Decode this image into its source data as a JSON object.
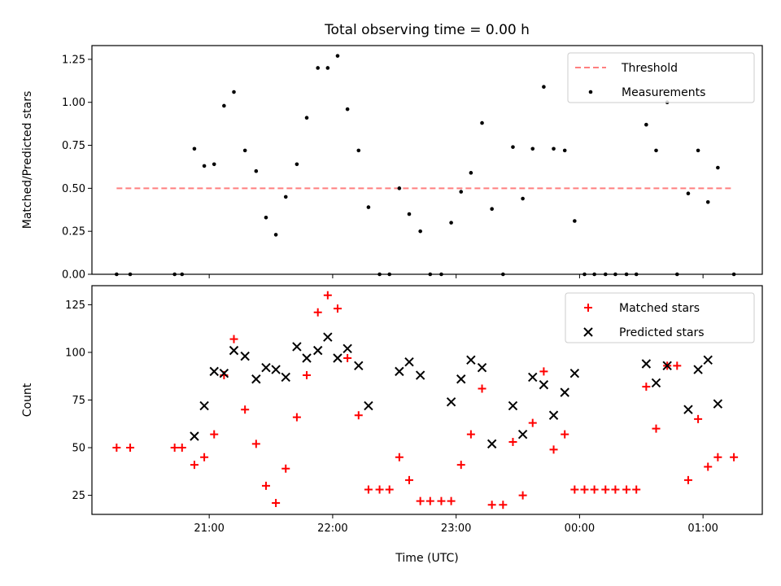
{
  "chart_data": {
    "type": "scatter",
    "title": "Total observing time = 0.00 h",
    "xlabel": "Time (UTC)",
    "x_ticks": [
      "21:00",
      "22:00",
      "23:00",
      "00:00",
      "01:00"
    ],
    "x_tick_hours": [
      21,
      22,
      23,
      24,
      25
    ],
    "xlim_hours": [
      20.05,
      25.48
    ],
    "panels": [
      {
        "ylabel": "Matched/Predicted stars",
        "ylim": [
          0,
          1.33
        ],
        "yticks": [
          "0.00",
          "0.25",
          "0.50",
          "0.75",
          "1.00",
          "1.25"
        ],
        "ytick_values": [
          0,
          0.25,
          0.5,
          0.75,
          1.0,
          1.25
        ],
        "legend_position": "top-right",
        "series": [
          {
            "name": "Threshold",
            "kind": "line",
            "style": "dashed",
            "color": "#ff7f7f",
            "y": 0.5,
            "x_range_hours": [
              20.25,
              25.25
            ]
          },
          {
            "name": "Measurements",
            "kind": "scatter",
            "marker": "dot",
            "color": "#000000",
            "x_hours": [
              20.25,
              20.36,
              20.72,
              20.78,
              20.88,
              20.96,
              21.04,
              21.12,
              21.2,
              21.29,
              21.38,
              21.46,
              21.54,
              21.62,
              21.71,
              21.79,
              21.88,
              21.96,
              22.04,
              22.12,
              22.21,
              22.29,
              22.38,
              22.46,
              22.54,
              22.62,
              22.71,
              22.79,
              22.88,
              22.96,
              23.04,
              23.12,
              23.21,
              23.29,
              23.38,
              23.46,
              23.54,
              23.62,
              23.71,
              23.79,
              23.88,
              23.96,
              24.04,
              24.12,
              24.21,
              24.29,
              24.38,
              24.46,
              24.54,
              24.62,
              24.71,
              24.79,
              24.88,
              24.96,
              25.04,
              25.12,
              25.25
            ],
            "y": [
              0,
              0,
              0,
              0,
              0.73,
              0.63,
              0.64,
              0.98,
              1.06,
              0.72,
              0.6,
              0.33,
              0.23,
              0.45,
              0.64,
              0.91,
              1.2,
              1.2,
              1.27,
              0.96,
              0.72,
              0.39,
              0,
              0,
              0.5,
              0.35,
              0.25,
              0,
              0,
              0.3,
              0.48,
              0.59,
              0.88,
              0.38,
              0,
              0.74,
              0.44,
              0.73,
              1.09,
              0.73,
              0.72,
              0.31,
              0,
              0,
              0,
              0,
              0,
              0,
              0.87,
              0.72,
              1.0,
              0,
              0.47,
              0.72,
              0.42,
              0.62,
              0
            ]
          }
        ]
      },
      {
        "ylabel": "Count",
        "ylim": [
          15,
          135
        ],
        "yticks": [
          "25",
          "50",
          "75",
          "100",
          "125"
        ],
        "ytick_values": [
          25,
          50,
          75,
          100,
          125
        ],
        "legend_position": "top-right",
        "series": [
          {
            "name": "Matched stars",
            "kind": "scatter",
            "marker": "plus",
            "color": "#ff0000",
            "x_hours": [
              20.25,
              20.36,
              20.72,
              20.78,
              20.88,
              20.96,
              21.04,
              21.12,
              21.2,
              21.29,
              21.38,
              21.46,
              21.54,
              21.62,
              21.71,
              21.79,
              21.88,
              21.96,
              22.04,
              22.12,
              22.21,
              22.29,
              22.38,
              22.46,
              22.54,
              22.62,
              22.71,
              22.79,
              22.88,
              22.96,
              23.04,
              23.12,
              23.21,
              23.29,
              23.38,
              23.46,
              23.54,
              23.62,
              23.71,
              23.79,
              23.88,
              23.96,
              24.04,
              24.12,
              24.21,
              24.29,
              24.38,
              24.46,
              24.54,
              24.62,
              24.71,
              24.79,
              24.88,
              24.96,
              25.04,
              25.12,
              25.25
            ],
            "y": [
              50,
              50,
              50,
              50,
              41,
              45,
              57,
              88,
              107,
              70,
              52,
              30,
              21,
              39,
              66,
              88,
              121,
              130,
              123,
              97,
              67,
              28,
              28,
              28,
              45,
              33,
              22,
              22,
              22,
              22,
              41,
              57,
              81,
              20,
              20,
              53,
              25,
              63,
              90,
              49,
              57,
              28,
              28,
              28,
              28,
              28,
              28,
              28,
              82,
              60,
              93,
              93,
              33,
              65,
              40,
              45,
              45
            ]
          },
          {
            "name": "Predicted stars",
            "kind": "scatter",
            "marker": "x",
            "color": "#000000",
            "x_hours": [
              20.88,
              20.96,
              21.04,
              21.12,
              21.2,
              21.29,
              21.38,
              21.46,
              21.54,
              21.62,
              21.71,
              21.79,
              21.88,
              21.96,
              22.04,
              22.12,
              22.21,
              22.29,
              22.54,
              22.62,
              22.71,
              22.96,
              23.04,
              23.12,
              23.21,
              23.29,
              23.46,
              23.54,
              23.62,
              23.71,
              23.79,
              23.88,
              23.96,
              24.54,
              24.62,
              24.71,
              24.88,
              24.96,
              25.04,
              25.12
            ],
            "y": [
              56,
              72,
              90,
              89,
              101,
              98,
              86,
              92,
              91,
              87,
              103,
              97,
              101,
              108,
              97,
              102,
              93,
              72,
              90,
              95,
              88,
              74,
              86,
              96,
              92,
              52,
              72,
              57,
              87,
              83,
              67,
              79,
              89,
              94,
              84,
              93,
              70,
              91,
              96,
              73
            ]
          }
        ]
      }
    ]
  }
}
